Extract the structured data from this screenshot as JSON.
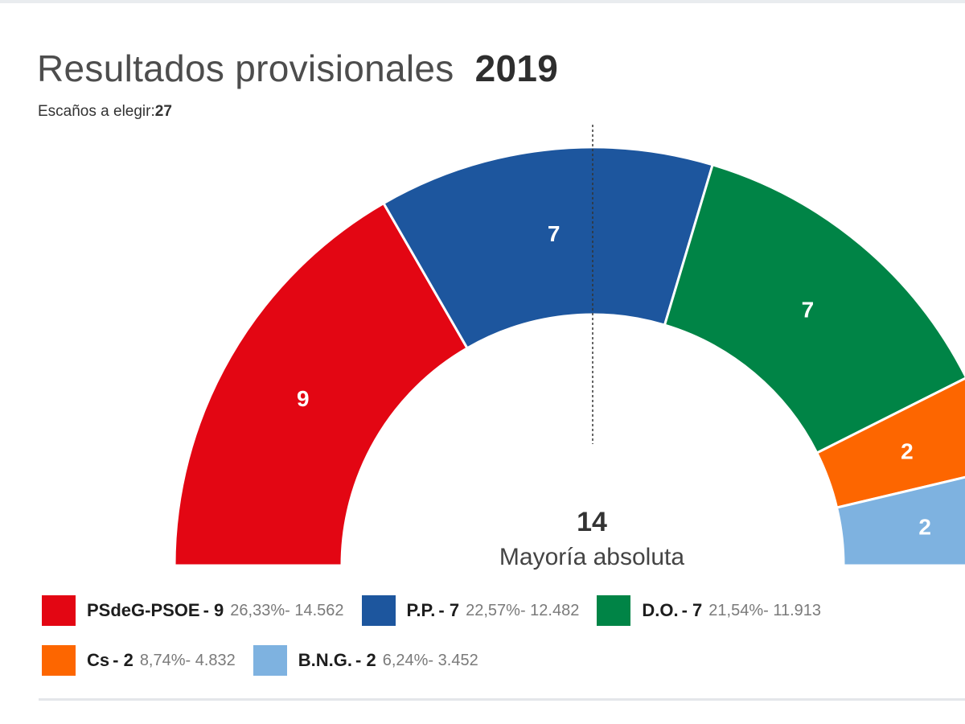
{
  "header": {
    "title": "Resultados provisionales",
    "year": "2019",
    "subtitle_label": "Escaños a elegir:",
    "subtitle_value": "27"
  },
  "majority": {
    "value": "14",
    "label": "Mayoría absoluta"
  },
  "chart_data": {
    "type": "pie",
    "title": "Resultados provisionales 2019",
    "subtitle": "Escaños a elegir:27",
    "total_seats": 27,
    "majority": 14,
    "categories": [
      "PSdeG-PSOE",
      "P.P.",
      "D.O.",
      "Cs",
      "B.N.G."
    ],
    "values": [
      9,
      7,
      7,
      2,
      2
    ],
    "series": [
      {
        "name": "PSdeG-PSOE",
        "seats": 9,
        "percent": "26,33%",
        "votes": "14.562",
        "color": "#e30613"
      },
      {
        "name": "P.P.",
        "seats": 7,
        "percent": "22,57%",
        "votes": "12.482",
        "color": "#1d569e"
      },
      {
        "name": "D.O.",
        "seats": 7,
        "percent": "21,54%",
        "votes": "11.913",
        "color": "#008446"
      },
      {
        "name": "Cs",
        "seats": 2,
        "percent": "8,74%",
        "votes": "4.832",
        "color": "#fd6600"
      },
      {
        "name": "B.N.G.",
        "seats": 2,
        "percent": "6,24%",
        "votes": "3.452",
        "color": "#7eb2e0"
      }
    ]
  },
  "legend": {
    "rows": [
      [
        {
          "party": "PSdeG-PSOE",
          "seats": "- 9",
          "stats": "26,33%- 14.562",
          "color": "#e30613"
        },
        {
          "party": "P.P.",
          "seats": "- 7",
          "stats": "22,57%- 12.482",
          "color": "#1d569e"
        },
        {
          "party": "D.O.",
          "seats": "- 7",
          "stats": "21,54%- 11.913",
          "color": "#008446"
        }
      ],
      [
        {
          "party": "Cs",
          "seats": "- 2",
          "stats": "8,74%- 4.832",
          "color": "#fd6600"
        },
        {
          "party": "B.N.G.",
          "seats": "- 2",
          "stats": "6,24%- 3.452",
          "color": "#7eb2e0"
        }
      ]
    ]
  }
}
